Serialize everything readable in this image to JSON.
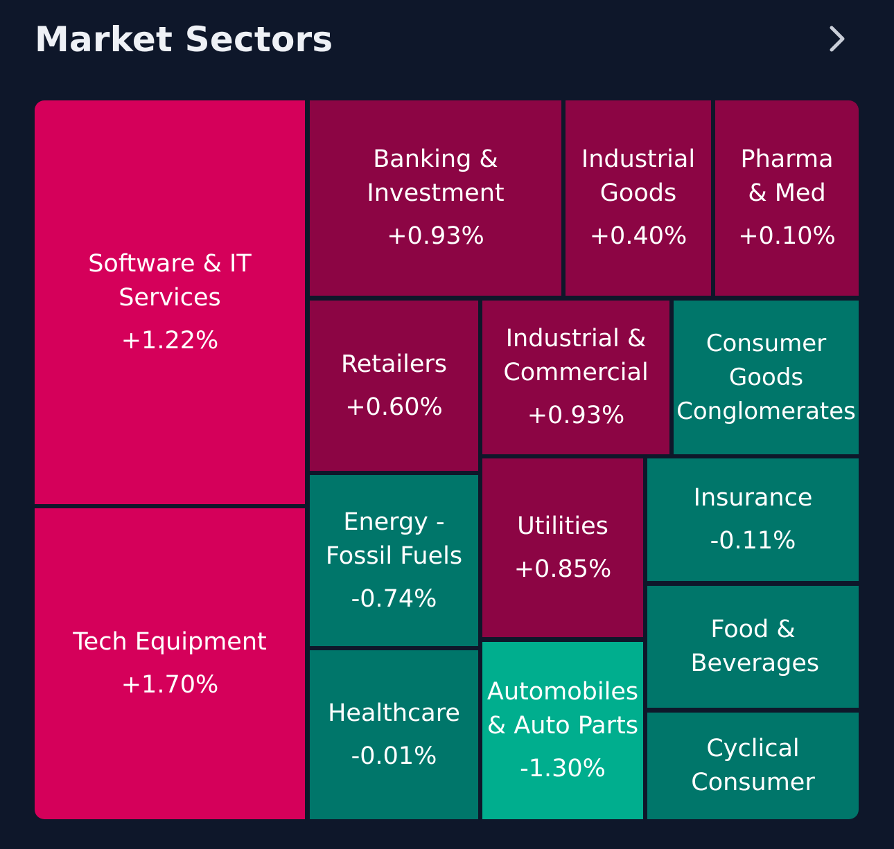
{
  "header": {
    "title": "Market Sectors"
  },
  "colors": {
    "background": "#0e172a",
    "strong_gain": "#d5005a",
    "gain": "#8c0544",
    "loss": "#00766a",
    "strong_loss": "#00ae8e"
  },
  "sectors": [
    {
      "name": "Software & IT Services",
      "change": "+1.22%"
    },
    {
      "name": "Tech Equipment",
      "change": "+1.70%"
    },
    {
      "name": "Banking & Investment",
      "change": "+0.93%"
    },
    {
      "name": "Industrial Goods",
      "change": "+0.40%"
    },
    {
      "name": "Pharma & Med",
      "change": "+0.10%"
    },
    {
      "name": "Retailers",
      "change": "+0.60%"
    },
    {
      "name": "Industrial & Commercial",
      "change": "+0.93%"
    },
    {
      "name": "Consumer Goods Conglomerates",
      "change": ""
    },
    {
      "name": "Energy - Fossil Fuels",
      "change": "-0.74%"
    },
    {
      "name": "Utilities",
      "change": "+0.85%"
    },
    {
      "name": "Insurance",
      "change": "-0.11%"
    },
    {
      "name": "Food & Beverages",
      "change": ""
    },
    {
      "name": "Healthcare",
      "change": "-0.01%"
    },
    {
      "name": "Automobiles & Auto Parts",
      "change": "-1.30%"
    },
    {
      "name": "Cyclical Consumer",
      "change": ""
    }
  ]
}
